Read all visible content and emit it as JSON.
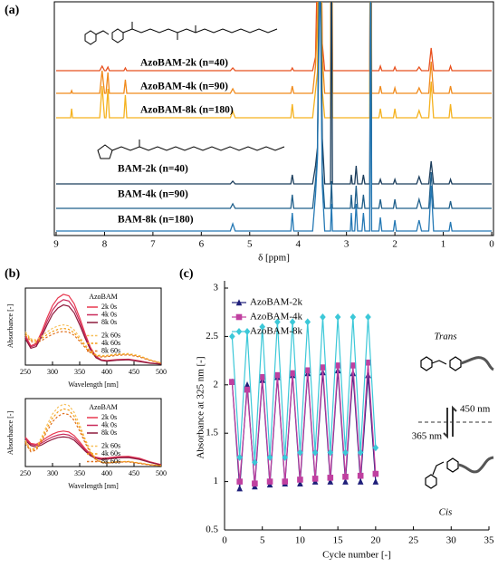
{
  "chart_data": [
    {
      "type": "line",
      "panel_label": "(a)",
      "x_label": "δ [ppm]",
      "xlim": [
        9,
        0
      ],
      "xticks": [
        9,
        8,
        7,
        6,
        5,
        4,
        3,
        2,
        1,
        0
      ],
      "x": [
        9.0,
        8.7,
        8.68,
        8.66,
        8.1,
        8.05,
        8.0,
        7.97,
        7.93,
        7.9,
        7.6,
        7.57,
        7.54,
        5.4,
        5.35,
        5.3,
        4.15,
        4.12,
        4.09,
        3.7,
        3.64,
        3.6,
        3.55,
        3.5,
        3.45,
        3.33,
        3.31,
        3.29,
        2.92,
        2.9,
        2.88,
        2.83,
        2.8,
        2.77,
        2.68,
        2.65,
        2.62,
        2.52,
        2.5,
        2.48,
        2.33,
        2.3,
        2.27,
        2.03,
        2.0,
        1.97,
        1.55,
        1.5,
        1.45,
        1.3,
        1.25,
        1.2,
        0.88,
        0.85,
        0.82,
        0.0
      ],
      "series": [
        {
          "name": "AzoBAM-2k (n=40)",
          "color": "#e8501e",
          "values": [
            0,
            0,
            0,
            0,
            0,
            0.5,
            0,
            0,
            0.4,
            0,
            0,
            0.3,
            0,
            0,
            0.3,
            0,
            0,
            0.3,
            0,
            0,
            1.5,
            12,
            30,
            3,
            0,
            0,
            30,
            0,
            0,
            0,
            0,
            0,
            0,
            0,
            0,
            0,
            0,
            0,
            30,
            0,
            0,
            0.5,
            0,
            0,
            0.4,
            0,
            0,
            0.4,
            0,
            0,
            2.5,
            0,
            0,
            0.5,
            0,
            0
          ]
        },
        {
          "name": "AzoBAM-4k (n=90)",
          "color": "#f08a1c",
          "values": [
            0,
            0,
            0.3,
            0,
            0,
            2.5,
            0,
            0,
            2.3,
            0,
            0,
            1.5,
            0,
            0,
            0.5,
            0,
            0,
            0.8,
            0,
            0,
            3,
            8,
            30,
            4,
            0,
            0,
            30,
            0,
            0,
            0,
            0,
            0,
            0,
            0,
            0,
            0,
            0,
            0,
            30,
            0,
            0,
            0.8,
            0,
            0,
            0.6,
            0,
            0,
            0.6,
            0,
            0,
            3.5,
            0,
            0,
            0.8,
            0,
            0
          ]
        },
        {
          "name": "AzoBAM-8k (n=180)",
          "color": "#f5b21e",
          "values": [
            0,
            0,
            1,
            0,
            0,
            3.5,
            0,
            0,
            3.2,
            0,
            0,
            2.5,
            0,
            0,
            0.7,
            0,
            0,
            1.5,
            0,
            0,
            3,
            5,
            30,
            3,
            0,
            0,
            30,
            0,
            0,
            0,
            0,
            0,
            0,
            0,
            0,
            0,
            0,
            0,
            30,
            0,
            0,
            1,
            0,
            0,
            1,
            0,
            0,
            0.8,
            0,
            0,
            4,
            0,
            0,
            1.5,
            0,
            0
          ]
        },
        {
          "name": "BAM-2k (n=40)",
          "color": "#1b3d5c",
          "values": [
            0,
            0,
            0,
            0,
            0,
            0,
            0,
            0,
            0,
            0,
            0,
            0,
            0,
            0,
            0.3,
            0,
            0,
            1,
            0,
            0,
            2,
            4,
            30,
            5,
            0,
            0,
            30,
            0,
            0,
            1,
            0,
            0,
            2,
            0,
            0,
            1,
            0,
            0,
            30,
            0,
            0,
            0.5,
            0,
            0,
            0.5,
            0,
            0,
            0.8,
            0,
            0,
            2.5,
            0,
            0,
            0.5,
            0,
            0
          ]
        },
        {
          "name": "BAM-4k (n=90)",
          "color": "#1f5f8b",
          "values": [
            0,
            0,
            0,
            0,
            0,
            0,
            0,
            0,
            0,
            0,
            0,
            0,
            0,
            0,
            0.5,
            0,
            0,
            1.5,
            0,
            0,
            3,
            6,
            30,
            4,
            0,
            0,
            3,
            0,
            0,
            1.5,
            0,
            0,
            2.5,
            0,
            0,
            1.5,
            0,
            0,
            30,
            0,
            0,
            1,
            0,
            0,
            1,
            0,
            0,
            1,
            0,
            0,
            4,
            0,
            0,
            0.8,
            0,
            0
          ]
        },
        {
          "name": "BAM-8k (n=180)",
          "color": "#2478b4",
          "values": [
            0,
            0,
            0,
            0,
            0,
            0,
            0,
            0,
            0,
            0,
            0,
            0,
            0,
            0,
            0.8,
            0,
            0,
            2,
            0,
            0,
            4,
            8,
            30,
            5,
            0,
            0,
            3,
            0,
            0,
            2,
            0,
            0,
            3,
            0,
            0,
            2,
            0,
            0,
            30,
            0,
            0,
            1.5,
            0,
            0,
            1.2,
            0,
            0,
            1.2,
            0,
            0,
            5,
            0,
            0,
            1,
            0,
            0
          ]
        }
      ]
    },
    {
      "type": "line",
      "panel_label": "(b)",
      "x_label": "Wavelength [nm]",
      "y_label": "Absorbance [-]",
      "legend_title": "AzoBAM",
      "xlim": [
        250,
        500
      ],
      "xticks": [
        250,
        300,
        350,
        400,
        450,
        500
      ],
      "ylim": [
        0,
        2.2
      ],
      "x": [
        250,
        260,
        270,
        280,
        290,
        300,
        310,
        320,
        330,
        340,
        350,
        360,
        370,
        380,
        390,
        400,
        420,
        440,
        460,
        480,
        500
      ],
      "series": [
        {
          "name": "2k 0s",
          "color": "#e8384f",
          "dash": false,
          "values": [
            0.85,
            0.55,
            0.62,
            0.95,
            1.35,
            1.7,
            1.92,
            2.02,
            1.98,
            1.75,
            1.35,
            0.9,
            0.5,
            0.25,
            0.15,
            0.13,
            0.16,
            0.17,
            0.12,
            0.06,
            0.03
          ]
        },
        {
          "name": "4k 0s",
          "color": "#c92a5a",
          "dash": false,
          "values": [
            0.8,
            0.52,
            0.58,
            0.88,
            1.25,
            1.57,
            1.77,
            1.87,
            1.83,
            1.62,
            1.25,
            0.83,
            0.46,
            0.23,
            0.14,
            0.12,
            0.15,
            0.16,
            0.11,
            0.06,
            0.03
          ]
        },
        {
          "name": "8k 0s",
          "color": "#8e1a3c",
          "dash": false,
          "values": [
            0.75,
            0.48,
            0.53,
            0.81,
            1.15,
            1.45,
            1.63,
            1.72,
            1.68,
            1.49,
            1.15,
            0.77,
            0.43,
            0.21,
            0.13,
            0.11,
            0.14,
            0.15,
            0.1,
            0.05,
            0.03
          ]
        },
        {
          "name": "2k 60s",
          "color": "#f7c05a",
          "dash": true,
          "values": [
            0.95,
            0.75,
            0.72,
            0.82,
            0.95,
            1.05,
            1.12,
            1.15,
            1.12,
            1.0,
            0.8,
            0.58,
            0.4,
            0.3,
            0.27,
            0.28,
            0.32,
            0.33,
            0.27,
            0.15,
            0.06
          ]
        },
        {
          "name": "4k 60s",
          "color": "#f39c12",
          "dash": true,
          "values": [
            0.9,
            0.72,
            0.68,
            0.76,
            0.87,
            0.96,
            1.02,
            1.05,
            1.02,
            0.92,
            0.74,
            0.54,
            0.37,
            0.28,
            0.25,
            0.26,
            0.3,
            0.31,
            0.25,
            0.14,
            0.06
          ]
        },
        {
          "name": "8k 60s",
          "color": "#e0701e",
          "dash": true,
          "values": [
            0.85,
            0.68,
            0.63,
            0.7,
            0.8,
            0.88,
            0.94,
            0.96,
            0.94,
            0.85,
            0.68,
            0.5,
            0.35,
            0.26,
            0.23,
            0.24,
            0.28,
            0.29,
            0.23,
            0.13,
            0.05
          ]
        }
      ]
    },
    {
      "type": "line",
      "x_label": "Wavelength [nm]",
      "y_label": "Absorbance [-]",
      "legend_title": "AzoBAM",
      "xlim": [
        250,
        500
      ],
      "xticks": [
        250,
        300,
        350,
        400,
        450,
        500
      ],
      "ylim": [
        0,
        2.2
      ],
      "x": [
        250,
        260,
        270,
        280,
        290,
        300,
        310,
        320,
        330,
        340,
        350,
        360,
        370,
        380,
        390,
        400,
        420,
        440,
        460,
        480,
        500
      ],
      "series": [
        {
          "name": "2k 0s",
          "color": "#e8384f",
          "dash": false,
          "values": [
            0.95,
            0.75,
            0.72,
            0.82,
            0.95,
            1.05,
            1.12,
            1.15,
            1.12,
            1.0,
            0.8,
            0.58,
            0.4,
            0.3,
            0.27,
            0.28,
            0.32,
            0.33,
            0.27,
            0.15,
            0.06
          ]
        },
        {
          "name": "4k 0s",
          "color": "#c92a5a",
          "dash": false,
          "values": [
            0.9,
            0.72,
            0.68,
            0.76,
            0.87,
            0.96,
            1.02,
            1.05,
            1.02,
            0.92,
            0.74,
            0.54,
            0.37,
            0.28,
            0.25,
            0.26,
            0.3,
            0.31,
            0.25,
            0.14,
            0.06
          ]
        },
        {
          "name": "8k 0s",
          "color": "#8e1a3c",
          "dash": false,
          "values": [
            0.85,
            0.68,
            0.63,
            0.7,
            0.8,
            0.88,
            0.94,
            0.96,
            0.94,
            0.85,
            0.68,
            0.5,
            0.35,
            0.26,
            0.23,
            0.24,
            0.28,
            0.29,
            0.23,
            0.13,
            0.05
          ]
        },
        {
          "name": "2k 60s",
          "color": "#f7c05a",
          "dash": true,
          "values": [
            0.85,
            0.55,
            0.62,
            0.95,
            1.35,
            1.7,
            1.92,
            2.02,
            1.98,
            1.75,
            1.35,
            0.9,
            0.5,
            0.25,
            0.15,
            0.13,
            0.16,
            0.17,
            0.12,
            0.06,
            0.03
          ]
        },
        {
          "name": "4k 60s",
          "color": "#f39c12",
          "dash": true,
          "values": [
            0.8,
            0.52,
            0.58,
            0.88,
            1.25,
            1.57,
            1.77,
            1.87,
            1.83,
            1.62,
            1.25,
            0.83,
            0.46,
            0.23,
            0.14,
            0.12,
            0.15,
            0.16,
            0.11,
            0.06,
            0.03
          ]
        },
        {
          "name": "8k 60s",
          "color": "#e0701e",
          "dash": true,
          "values": [
            0.75,
            0.48,
            0.53,
            0.81,
            1.15,
            1.45,
            1.63,
            1.72,
            1.68,
            1.49,
            1.15,
            0.77,
            0.43,
            0.21,
            0.13,
            0.11,
            0.14,
            0.15,
            0.1,
            0.05,
            0.03
          ]
        }
      ]
    },
    {
      "type": "line",
      "panel_label": "(c)",
      "x_label": "Cycle number [-]",
      "y_label": "Absorbance at 325 nm [-]",
      "legend": "upper left",
      "xlim": [
        0,
        35
      ],
      "xticks": [
        0,
        5,
        10,
        15,
        20,
        25,
        30,
        35
      ],
      "ylim": [
        0.5,
        3
      ],
      "yticks": [
        0.5,
        1,
        1.5,
        2,
        2.5,
        3
      ],
      "x": [
        1,
        2,
        3,
        4,
        5,
        6,
        7,
        8,
        9,
        10,
        11,
        12,
        13,
        14,
        15,
        16,
        17,
        18,
        19,
        20
      ],
      "series": [
        {
          "name": "AzoBAM-2k",
          "color": "#1f1f7a",
          "marker": "triangle",
          "values": [
            2.03,
            0.93,
            2.0,
            0.95,
            2.05,
            0.97,
            2.08,
            0.98,
            2.1,
            0.98,
            2.12,
            1.0,
            2.13,
            1.0,
            2.15,
            1.0,
            2.12,
            1.0,
            2.1,
            1.0
          ]
        },
        {
          "name": "AzoBAM-4k",
          "color": "#c040a0",
          "marker": "square",
          "values": [
            2.03,
            1.0,
            1.95,
            0.98,
            2.08,
            1.0,
            2.1,
            1.0,
            2.12,
            1.02,
            2.15,
            1.03,
            2.18,
            1.04,
            2.2,
            1.05,
            2.2,
            1.06,
            2.23,
            1.08
          ]
        },
        {
          "name": "AzoBAM-8k",
          "color": "#3cc8d8",
          "marker": "diamond",
          "values": [
            2.5,
            1.25,
            2.55,
            1.2,
            2.6,
            1.25,
            2.65,
            1.25,
            2.65,
            1.3,
            2.65,
            1.3,
            2.7,
            1.3,
            2.7,
            1.3,
            2.7,
            1.3,
            2.7,
            1.35
          ]
        }
      ],
      "annotations": {
        "trans": "Trans",
        "cis": "Cis",
        "up": "450 nm",
        "down": "365 nm"
      }
    }
  ]
}
